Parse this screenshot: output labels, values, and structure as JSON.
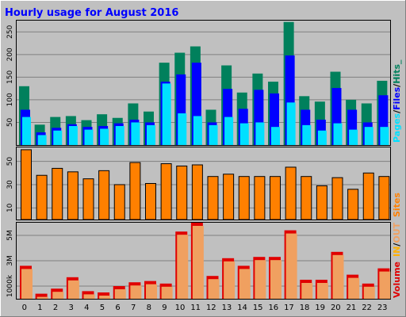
{
  "chart_data": {
    "title": "Hourly usage for August 2016",
    "hours": [
      "0",
      "1",
      "2",
      "3",
      "4",
      "5",
      "6",
      "7",
      "8",
      "9",
      "10",
      "11",
      "12",
      "13",
      "14",
      "15",
      "16",
      "17",
      "18",
      "19",
      "20",
      "21",
      "22",
      "23"
    ],
    "top_panel": {
      "type": "bar",
      "ylim": [
        0,
        275
      ],
      "ticks": [
        "50",
        "100",
        "150",
        "200",
        "250"
      ],
      "ticks_values": [
        50,
        100,
        150,
        200,
        250
      ],
      "legend": {
        "pages": "Pages",
        "files": "Files",
        "hits": "Hits",
        "sep1": "/",
        "sep2": "/",
        "suffix": "_"
      },
      "series": [
        {
          "name": "Hits",
          "values": [
            130,
            45,
            62,
            64,
            55,
            68,
            60,
            92,
            74,
            182,
            204,
            218,
            78,
            176,
            116,
            158,
            140,
            272,
            108,
            96,
            162,
            100,
            92,
            142
          ]
        },
        {
          "name": "Files",
          "values": [
            78,
            28,
            38,
            46,
            40,
            42,
            48,
            56,
            50,
            140,
            156,
            182,
            50,
            124,
            80,
            122,
            114,
            198,
            78,
            56,
            126,
            78,
            50,
            110
          ]
        },
        {
          "name": "Pages",
          "values": [
            62,
            22,
            32,
            42,
            34,
            36,
            42,
            50,
            44,
            136,
            70,
            64,
            44,
            62,
            48,
            50,
            40,
            94,
            44,
            32,
            48,
            34,
            40,
            40
          ]
        }
      ]
    },
    "mid_panel": {
      "type": "bar",
      "ylim": [
        0,
        62
      ],
      "ticks": [
        "10",
        "30",
        "50"
      ],
      "ticks_values": [
        10,
        30,
        50
      ],
      "legend": "Sites",
      "series": [
        {
          "name": "Sites",
          "values": [
            60,
            38,
            44,
            41,
            35,
            42,
            30,
            49,
            31,
            48,
            46,
            47,
            37,
            39,
            37,
            37,
            37,
            45,
            37,
            29,
            36,
            26,
            40,
            37
          ]
        }
      ]
    },
    "bottom_panel": {
      "type": "bar",
      "ylim": [
        0,
        6000
      ],
      "ticks": [
        "1000k",
        "3M",
        "5M"
      ],
      "ticks_values": [
        1000,
        3000,
        5000
      ],
      "legend": {
        "volume": "Volume",
        "in": "IN",
        "out": "OUT",
        "sep": "/"
      },
      "series": [
        {
          "name": "Volume",
          "values": [
            2600,
            400,
            800,
            1700,
            600,
            500,
            1000,
            1300,
            1400,
            1200,
            5300,
            6000,
            1800,
            3200,
            2600,
            3300,
            3300,
            5400,
            1500,
            1500,
            3700,
            1900,
            1200,
            2400
          ]
        }
      ]
    },
    "colors": {
      "hits": "#00805c",
      "files": "#0000ff",
      "pages": "#00e0ff",
      "sites": "#ff8000",
      "volume": "#e00000",
      "volume_in": "#ffb000",
      "volume_bar": "#f0a060",
      "title": "#0000ff",
      "plot_bg": "#c0c0c0",
      "frame_bg": "#c0c0c0"
    }
  }
}
